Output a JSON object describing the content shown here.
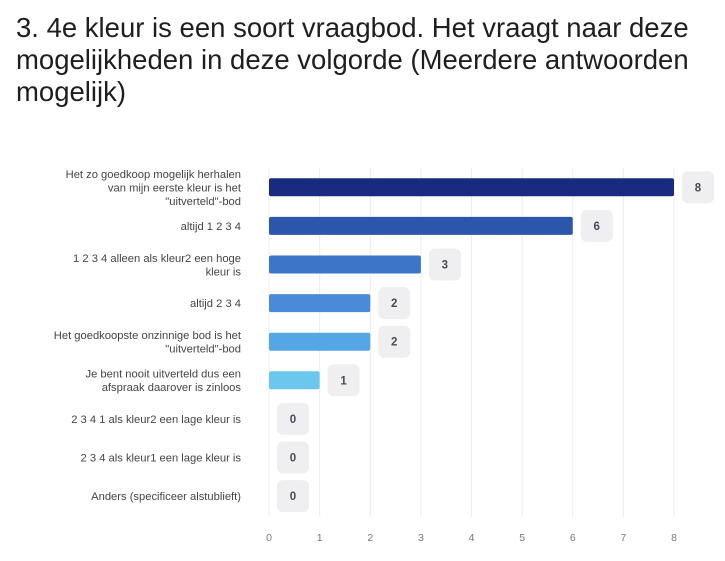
{
  "question": {
    "title": "3. 4e kleur is een soort vraagbod. Het vraagt naar deze mogelijkheden in deze volgorde (Meerdere antwoorden mogelijk)"
  },
  "chart_data": {
    "type": "bar",
    "orientation": "horizontal",
    "categories": [
      [
        "Het zo goedkoop mogelijk herhalen",
        "van mijn eerste kleur is het",
        "\"uitverteld\"-bod"
      ],
      [
        "altijd 1 2 3 4"
      ],
      [
        "1 2 3 4 alleen als kleur2 een hoge",
        "kleur is"
      ],
      [
        "altijd 2 3 4"
      ],
      [
        "Het goedkoopste onzinnige bod is het",
        "\"uitverteld\"-bod"
      ],
      [
        "Je bent nooit uitverteld dus een",
        "afspraak daarover is zinloos"
      ],
      [
        "2 3 4 1 als kleur2 een lage kleur is"
      ],
      [
        "2 3 4 als kleur1 een lage kleur is"
      ],
      [
        "Anders (specificeer alstublieft)"
      ]
    ],
    "values": [
      8,
      6,
      3,
      2,
      2,
      1,
      0,
      0,
      0
    ],
    "colors": [
      "#1a2a80",
      "#2c56ab",
      "#3d75c8",
      "#4a8ad7",
      "#55a6e4",
      "#6ac8ef",
      "#8fd4f3",
      "#8fd4f3",
      "#8fd4f3"
    ],
    "xlim": [
      0,
      8
    ],
    "xticks": [
      "0",
      "1",
      "2",
      "3",
      "4",
      "5",
      "6",
      "7",
      "8"
    ],
    "grid": true
  }
}
